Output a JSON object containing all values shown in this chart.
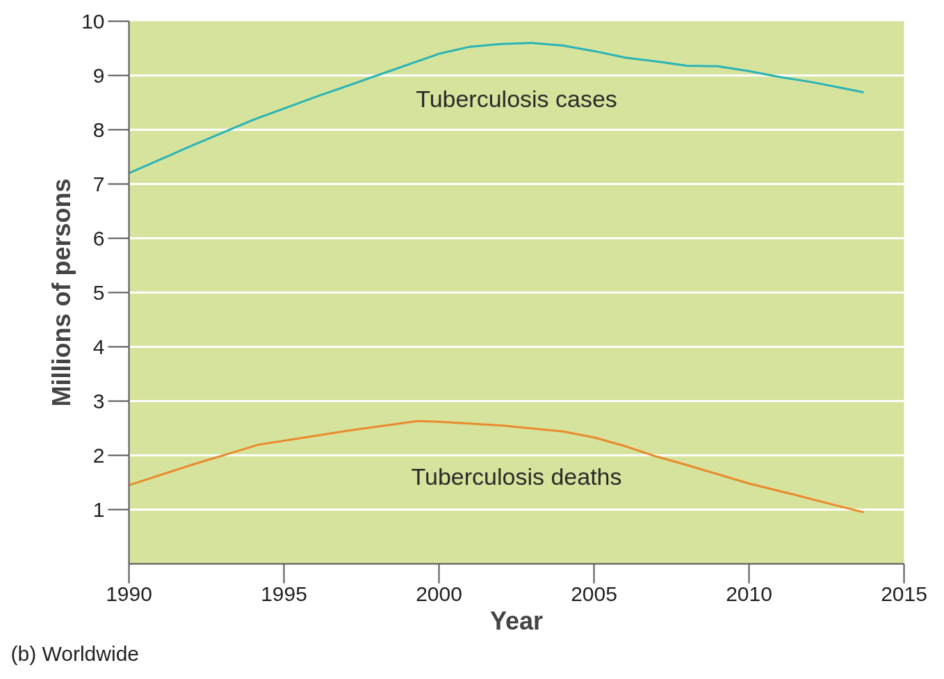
{
  "chart_data": {
    "type": "line",
    "xlabel": "Year",
    "ylabel": "Millions of persons",
    "xlim": [
      1990,
      2015
    ],
    "xticks": [
      1990,
      1995,
      2000,
      2005,
      2010,
      2015
    ],
    "ylim": [
      0,
      10
    ],
    "yticks": [
      1,
      2,
      3,
      4,
      5,
      6,
      7,
      8,
      9,
      10
    ],
    "grid": "y",
    "line_style": "solid",
    "series": [
      {
        "name": "Tuberculosis cases",
        "color": "#2ab3b8",
        "x": [
          1990,
          1992,
          1994,
          1996,
          1998,
          2000,
          2001,
          2002,
          2003,
          2004,
          2005,
          2006,
          2007,
          2008,
          2009,
          2010,
          2011,
          2012,
          2013,
          2013.7
        ],
        "values": [
          7.2,
          7.7,
          8.18,
          8.6,
          9.0,
          9.4,
          9.53,
          9.58,
          9.6,
          9.55,
          9.45,
          9.33,
          9.26,
          9.18,
          9.17,
          9.08,
          8.97,
          8.88,
          8.77,
          8.69
        ]
      },
      {
        "name": "Tuberculosis deaths",
        "color": "#ea8a2e",
        "x": [
          1990,
          1992,
          1994.2,
          1995,
          1997,
          1999.3,
          2000,
          2002,
          2004,
          2005,
          2006,
          2007,
          2008,
          2009,
          2010,
          2011.5,
          2013,
          2013.7
        ],
        "values": [
          1.45,
          1.82,
          2.2,
          2.27,
          2.45,
          2.63,
          2.62,
          2.55,
          2.44,
          2.33,
          2.17,
          1.98,
          1.82,
          1.65,
          1.48,
          1.27,
          1.05,
          0.95
        ]
      }
    ],
    "annotations": [
      "(b) Worldwide"
    ]
  }
}
